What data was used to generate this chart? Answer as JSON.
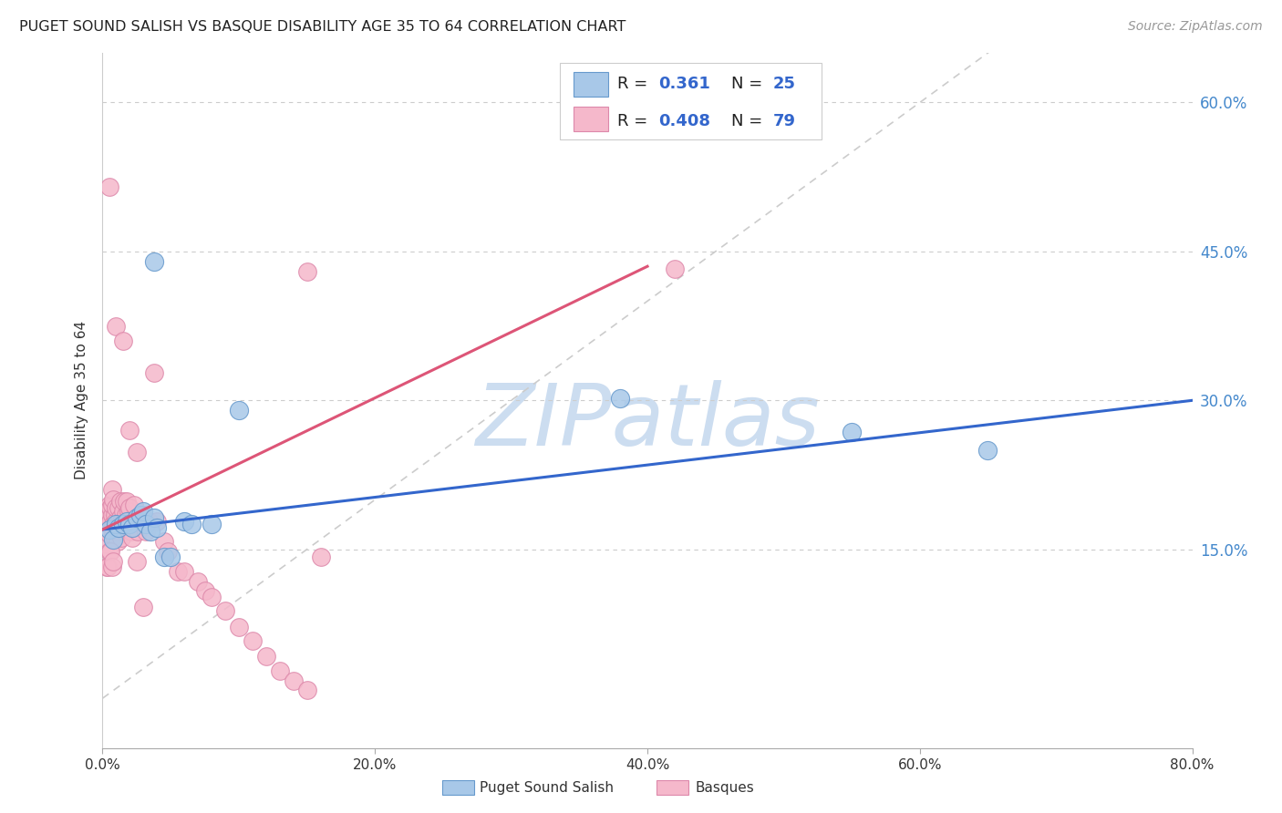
{
  "title": "PUGET SOUND SALISH VS BASQUE DISABILITY AGE 35 TO 64 CORRELATION CHART",
  "source": "Source: ZipAtlas.com",
  "ylabel": "Disability Age 35 to 64",
  "xlim": [
    0.0,
    0.8
  ],
  "ylim": [
    -0.05,
    0.65
  ],
  "yticks": [
    0.15,
    0.3,
    0.45,
    0.6
  ],
  "xticks": [
    0.0,
    0.2,
    0.4,
    0.6,
    0.8
  ],
  "xtick_labels": [
    "0.0%",
    "20.0%",
    "40.0%",
    "60.0%",
    "80.0%"
  ],
  "ytick_labels": [
    "15.0%",
    "30.0%",
    "45.0%",
    "60.0%"
  ],
  "salish_color": "#a8c8e8",
  "salish_edge_color": "#6699cc",
  "basque_color": "#f5b8cb",
  "basque_edge_color": "#dd88aa",
  "salish_R": "0.361",
  "salish_N": "25",
  "basque_R": "0.408",
  "basque_N": "79",
  "salish_line_color": "#3366cc",
  "basque_line_color": "#dd5577",
  "ref_line_color": "#cccccc",
  "legend_R_color": "#3366cc",
  "legend_N_color": "#222222",
  "watermark_text": "ZIPatlas",
  "watermark_color": "#ccddf0",
  "right_axis_color": "#4488cc",
  "salish_line_x": [
    0.0,
    0.8
  ],
  "salish_line_y": [
    0.17,
    0.3
  ],
  "basque_line_x": [
    0.0,
    0.4
  ],
  "basque_line_y": [
    0.17,
    0.435
  ],
  "ref_line_x": [
    0.0,
    0.8
  ],
  "ref_line_y": [
    0.0,
    0.8
  ],
  "salish_x": [
    0.005,
    0.008,
    0.01,
    0.012,
    0.015,
    0.018,
    0.02,
    0.022,
    0.025,
    0.028,
    0.03,
    0.032,
    0.035,
    0.038,
    0.04,
    0.045,
    0.05,
    0.06,
    0.065,
    0.08,
    0.038,
    0.55,
    0.65,
    0.38,
    0.1
  ],
  "salish_y": [
    0.17,
    0.16,
    0.175,
    0.172,
    0.175,
    0.178,
    0.175,
    0.172,
    0.182,
    0.185,
    0.188,
    0.175,
    0.168,
    0.182,
    0.172,
    0.142,
    0.142,
    0.178,
    0.175,
    0.175,
    0.44,
    0.268,
    0.25,
    0.302,
    0.29
  ],
  "basque_x": [
    0.003,
    0.004,
    0.004,
    0.005,
    0.005,
    0.005,
    0.006,
    0.006,
    0.007,
    0.007,
    0.007,
    0.008,
    0.008,
    0.008,
    0.009,
    0.009,
    0.01,
    0.01,
    0.01,
    0.011,
    0.011,
    0.012,
    0.012,
    0.012,
    0.013,
    0.013,
    0.014,
    0.014,
    0.015,
    0.015,
    0.016,
    0.016,
    0.017,
    0.017,
    0.018,
    0.018,
    0.019,
    0.02,
    0.02,
    0.021,
    0.022,
    0.023,
    0.025,
    0.026,
    0.028,
    0.03,
    0.032,
    0.034,
    0.038,
    0.04,
    0.045,
    0.048,
    0.055,
    0.06,
    0.07,
    0.075,
    0.08,
    0.09,
    0.1,
    0.11,
    0.12,
    0.13,
    0.14,
    0.15,
    0.003,
    0.004,
    0.005,
    0.006,
    0.007,
    0.008,
    0.15,
    0.16,
    0.42,
    0.005,
    0.01,
    0.015,
    0.02,
    0.025,
    0.03
  ],
  "basque_y": [
    0.155,
    0.175,
    0.185,
    0.165,
    0.175,
    0.195,
    0.178,
    0.192,
    0.185,
    0.195,
    0.21,
    0.165,
    0.175,
    0.2,
    0.162,
    0.185,
    0.172,
    0.178,
    0.192,
    0.158,
    0.175,
    0.168,
    0.178,
    0.192,
    0.182,
    0.198,
    0.162,
    0.178,
    0.188,
    0.178,
    0.198,
    0.175,
    0.172,
    0.185,
    0.198,
    0.178,
    0.188,
    0.175,
    0.192,
    0.168,
    0.162,
    0.195,
    0.138,
    0.168,
    0.178,
    0.185,
    0.168,
    0.178,
    0.328,
    0.178,
    0.158,
    0.148,
    0.128,
    0.128,
    0.118,
    0.108,
    0.102,
    0.088,
    0.072,
    0.058,
    0.042,
    0.028,
    0.018,
    0.008,
    0.132,
    0.132,
    0.148,
    0.148,
    0.132,
    0.138,
    0.43,
    0.142,
    0.432,
    0.515,
    0.375,
    0.36,
    0.27,
    0.248,
    0.092
  ],
  "bottom_legend_patches": [
    "#a8c8e8",
    "#f5b8cb"
  ],
  "bottom_legend_labels": [
    "Puget Sound Salish",
    "Basques"
  ]
}
